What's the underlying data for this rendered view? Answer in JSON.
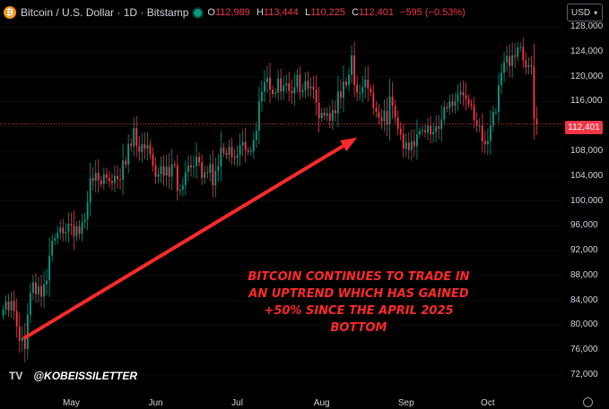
{
  "header": {
    "title": "Bitcoin / U.S. Dollar · 1D · Bitstamp",
    "icon": "bitcoin-icon",
    "ohlc": {
      "o_label": "O",
      "o_value": "112,989",
      "h_label": "H",
      "h_value": "113,444",
      "l_label": "L",
      "l_value": "110,225",
      "c_label": "C",
      "c_value": "112,401",
      "change": "−595 (−0.53%)"
    }
  },
  "currency_button": {
    "label": "USD"
  },
  "price_tag": "112,401",
  "watermark": {
    "logo": "TV",
    "handle": "@KOBEISSILETTER"
  },
  "annotation": "BITCOIN CONTINUES TO TRADE IN AN UPTREND WHICH HAS GAINED +50% SINCE THE APRIL 2025 BOTTOM",
  "colors": {
    "up": "#089981",
    "down": "#f23645",
    "annotation": "#ff2a2a",
    "background": "#000000"
  },
  "chart_data": {
    "type": "candlestick",
    "ylim": [
      72000,
      128000
    ],
    "y_ticks": [
      "128,000",
      "124,000",
      "120,000",
      "116,000",
      "112,000",
      "108,000",
      "104,000",
      "100,000",
      "96,000",
      "92,000",
      "88,000",
      "84,000",
      "80,000",
      "76,000",
      "72,000"
    ],
    "x_ticks": [
      "May",
      "Jun",
      "Jul",
      "Aug",
      "Sep",
      "Oct"
    ],
    "last_price": 112401,
    "trend_arrow": {
      "from": {
        "day": 8,
        "price": 78000
      },
      "to": {
        "day": 130,
        "price": 110200
      }
    },
    "closes": [
      82500,
      83800,
      82400,
      83900,
      82300,
      79800,
      77500,
      78000,
      76200,
      81700,
      85200,
      86900,
      85000,
      86300,
      84600,
      86600,
      87200,
      91200,
      93600,
      94000,
      94900,
      95700,
      94800,
      95000,
      96300,
      96100,
      94300,
      95900,
      94700,
      96600,
      97000,
      99700,
      103700,
      103200,
      104500,
      103300,
      102700,
      104300,
      103700,
      103200,
      102900,
      104000,
      103500,
      103400,
      106500,
      105800,
      109200,
      108800,
      111700,
      108800,
      107900,
      109100,
      108400,
      109000,
      107500,
      105700,
      103900,
      104300,
      105600,
      104100,
      105500,
      103900,
      105900,
      105700,
      101600,
      101800,
      102500,
      104700,
      105700,
      105400,
      105600,
      107100,
      106200,
      103700,
      104600,
      104500,
      105900,
      102500,
      104800,
      105600,
      108600,
      107700,
      107400,
      108700,
      107100,
      106900,
      107400,
      108900,
      109500,
      108200,
      107900,
      108000,
      109800,
      111300,
      116000,
      117600,
      119100,
      119800,
      117900,
      117200,
      117400,
      119700,
      117600,
      118600,
      118900,
      117700,
      117300,
      118300,
      120300,
      117500,
      117800,
      119300,
      118100,
      118400,
      117900,
      115800,
      113300,
      114200,
      113700,
      114100,
      112900,
      114600,
      114100,
      117600,
      116600,
      119200,
      118600,
      120300,
      123400,
      118700,
      117400,
      117400,
      118300,
      119500,
      118100,
      117400,
      115000,
      114300,
      113400,
      112800,
      114500,
      112300,
      116800,
      115300,
      113400,
      111600,
      110700,
      108400,
      109400,
      108200,
      109600,
      108800,
      110700,
      111200,
      111400,
      111000,
      112100,
      110700,
      111100,
      112000,
      111600,
      113100,
      115100,
      114900,
      116000,
      115300,
      116000,
      117100,
      117500,
      117000,
      116400,
      115600,
      115300,
      113000,
      112100,
      112100,
      109600,
      109100,
      109700,
      112100,
      114300,
      114300,
      118600,
      120600,
      122300,
      123300,
      121700,
      123400,
      123200,
      124700,
      124800,
      122600,
      121500,
      121800,
      121600,
      113200,
      112400
    ]
  }
}
